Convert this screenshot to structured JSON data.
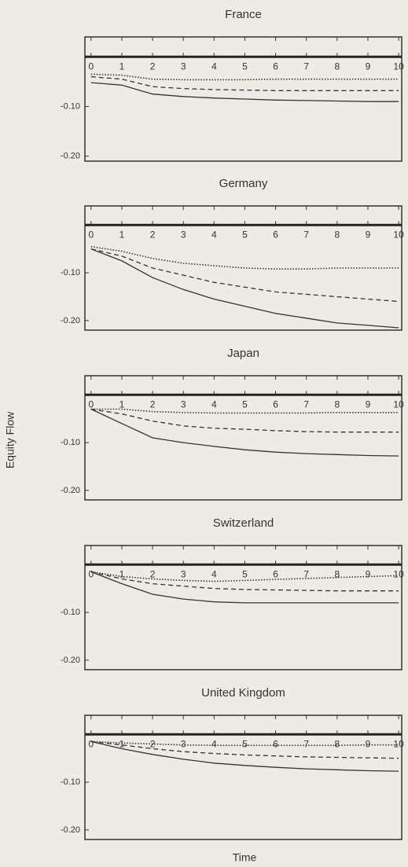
{
  "y_label": "Equity Flow",
  "x_label": "Time",
  "chart_data": [
    {
      "type": "line",
      "title": "France",
      "xlim": [
        -0.2,
        10.1
      ],
      "ylim": [
        -0.21,
        0.04
      ],
      "xticks": [
        0,
        1,
        2,
        3,
        4,
        5,
        6,
        7,
        8,
        9,
        10
      ],
      "yticks": [
        {
          "value": -0.1,
          "label": "-0.10"
        },
        {
          "value": -0.2,
          "label": "-0.20"
        }
      ],
      "x": [
        0,
        1,
        2,
        3,
        4,
        5,
        6,
        7,
        8,
        9,
        10
      ],
      "series": [
        {
          "color": "#333333",
          "style": "solid",
          "values": [
            -0.052,
            -0.057,
            -0.075,
            -0.08,
            -0.083,
            -0.085,
            -0.087,
            -0.088,
            -0.089,
            -0.09,
            -0.09
          ]
        },
        {
          "color": "#333333",
          "style": "dashed",
          "values": [
            -0.04,
            -0.045,
            -0.06,
            -0.064,
            -0.066,
            -0.067,
            -0.068,
            -0.068,
            -0.068,
            -0.068,
            -0.068
          ]
        },
        {
          "color": "#333333",
          "style": "dotted",
          "values": [
            -0.035,
            -0.037,
            -0.045,
            -0.046,
            -0.046,
            -0.046,
            -0.045,
            -0.045,
            -0.045,
            -0.045,
            -0.045
          ]
        }
      ]
    },
    {
      "type": "line",
      "title": "Germany",
      "xlim": [
        -0.2,
        10.1
      ],
      "ylim": [
        -0.22,
        0.04
      ],
      "xticks": [
        0,
        1,
        2,
        3,
        4,
        5,
        6,
        7,
        8,
        9,
        10
      ],
      "yticks": [
        {
          "value": -0.1,
          "label": "-0.10"
        },
        {
          "value": -0.2,
          "label": "-0.20"
        }
      ],
      "x": [
        0,
        1,
        2,
        3,
        4,
        5,
        6,
        7,
        8,
        9,
        10
      ],
      "series": [
        {
          "color": "#333333",
          "style": "solid",
          "values": [
            -0.05,
            -0.075,
            -0.11,
            -0.135,
            -0.155,
            -0.17,
            -0.185,
            -0.195,
            -0.205,
            -0.21,
            -0.215
          ]
        },
        {
          "color": "#333333",
          "style": "dashed",
          "values": [
            -0.05,
            -0.065,
            -0.09,
            -0.105,
            -0.12,
            -0.13,
            -0.14,
            -0.145,
            -0.15,
            -0.155,
            -0.16
          ]
        },
        {
          "color": "#333333",
          "style": "dotted",
          "values": [
            -0.045,
            -0.055,
            -0.07,
            -0.08,
            -0.085,
            -0.09,
            -0.092,
            -0.092,
            -0.09,
            -0.09,
            -0.09
          ]
        }
      ]
    },
    {
      "type": "line",
      "title": "Japan",
      "xlim": [
        -0.2,
        10.1
      ],
      "ylim": [
        -0.22,
        0.04
      ],
      "xticks": [
        0,
        1,
        2,
        3,
        4,
        5,
        6,
        7,
        8,
        9,
        10
      ],
      "yticks": [
        {
          "value": -0.1,
          "label": "-0.10"
        },
        {
          "value": -0.2,
          "label": "-0.20"
        }
      ],
      "x": [
        0,
        1,
        2,
        3,
        4,
        5,
        6,
        7,
        8,
        9,
        10
      ],
      "series": [
        {
          "color": "#333333",
          "style": "solid",
          "values": [
            -0.03,
            -0.06,
            -0.09,
            -0.1,
            -0.108,
            -0.115,
            -0.12,
            -0.123,
            -0.125,
            -0.127,
            -0.128
          ]
        },
        {
          "color": "#333333",
          "style": "dashed",
          "values": [
            -0.03,
            -0.04,
            -0.055,
            -0.065,
            -0.07,
            -0.072,
            -0.075,
            -0.077,
            -0.078,
            -0.078,
            -0.078
          ]
        },
        {
          "color": "#333333",
          "style": "dotted",
          "values": [
            -0.03,
            -0.03,
            -0.035,
            -0.037,
            -0.038,
            -0.038,
            -0.038,
            -0.038,
            -0.037,
            -0.037,
            -0.037
          ]
        }
      ]
    },
    {
      "type": "line",
      "title": "Switzerland",
      "xlim": [
        -0.2,
        10.1
      ],
      "ylim": [
        -0.22,
        0.04
      ],
      "xticks": [
        0,
        1,
        2,
        3,
        4,
        5,
        6,
        7,
        8,
        9,
        10
      ],
      "yticks": [
        {
          "value": -0.1,
          "label": "-0.10"
        },
        {
          "value": -0.2,
          "label": "-0.20"
        }
      ],
      "x": [
        0,
        1,
        2,
        3,
        4,
        5,
        6,
        7,
        8,
        9,
        10
      ],
      "series": [
        {
          "color": "#333333",
          "style": "solid",
          "values": [
            -0.015,
            -0.04,
            -0.062,
            -0.072,
            -0.078,
            -0.08,
            -0.08,
            -0.08,
            -0.08,
            -0.08,
            -0.08
          ]
        },
        {
          "color": "#333333",
          "style": "dashed",
          "values": [
            -0.015,
            -0.03,
            -0.04,
            -0.045,
            -0.05,
            -0.052,
            -0.053,
            -0.054,
            -0.055,
            -0.055,
            -0.055
          ]
        },
        {
          "color": "#333333",
          "style": "dotted",
          "values": [
            -0.015,
            -0.025,
            -0.03,
            -0.033,
            -0.035,
            -0.033,
            -0.031,
            -0.029,
            -0.027,
            -0.025,
            -0.023
          ]
        }
      ]
    },
    {
      "type": "line",
      "title": "United Kingdom",
      "xlim": [
        -0.2,
        10.1
      ],
      "ylim": [
        -0.22,
        0.04
      ],
      "xticks": [
        0,
        1,
        2,
        3,
        4,
        5,
        6,
        7,
        8,
        9,
        10
      ],
      "yticks": [
        {
          "value": -0.1,
          "label": "-0.10"
        },
        {
          "value": -0.2,
          "label": "-0.20"
        }
      ],
      "x": [
        0,
        1,
        2,
        3,
        4,
        5,
        6,
        7,
        8,
        9,
        10
      ],
      "series": [
        {
          "color": "#333333",
          "style": "solid",
          "values": [
            -0.015,
            -0.03,
            -0.042,
            -0.052,
            -0.06,
            -0.065,
            -0.069,
            -0.072,
            -0.074,
            -0.076,
            -0.077
          ]
        },
        {
          "color": "#333333",
          "style": "dashed",
          "values": [
            -0.015,
            -0.022,
            -0.03,
            -0.036,
            -0.04,
            -0.043,
            -0.045,
            -0.047,
            -0.048,
            -0.049,
            -0.05
          ]
        },
        {
          "color": "#333333",
          "style": "dotted",
          "values": [
            -0.015,
            -0.018,
            -0.02,
            -0.022,
            -0.023,
            -0.023,
            -0.023,
            -0.023,
            -0.023,
            -0.022,
            -0.022
          ]
        }
      ]
    }
  ]
}
